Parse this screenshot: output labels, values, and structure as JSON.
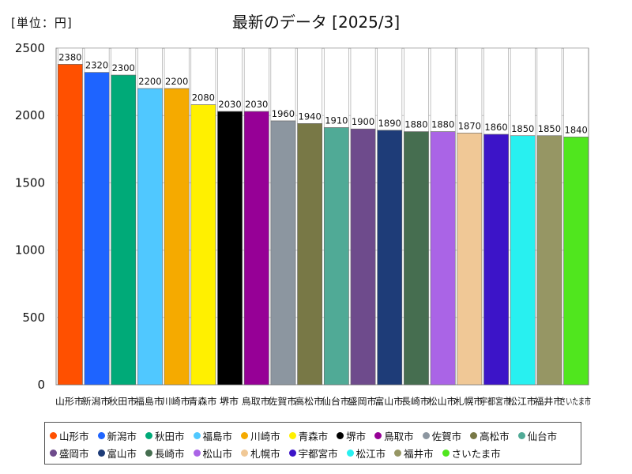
{
  "header": {
    "unit": "[単位：円]",
    "title": "最新のデータ [2025/3]"
  },
  "chart_data": {
    "type": "bar",
    "title": "最新のデータ [2025/3]",
    "ylabel": "[単位：円]",
    "xlabel": "",
    "ylim": [
      0,
      2500
    ],
    "yticks": [
      0,
      500,
      1000,
      1500,
      2000,
      2500
    ],
    "grid": true,
    "legend_position": "bottom",
    "categories": [
      "山形市",
      "新潟市",
      "秋田市",
      "福島市",
      "川崎市",
      "青森市",
      "堺市",
      "鳥取市",
      "佐賀市",
      "高松市",
      "仙台市",
      "盛岡市",
      "富山市",
      "長崎市",
      "松山市",
      "札幌市",
      "宇都宮市",
      "松江市",
      "福井市",
      "さいたま市"
    ],
    "values": [
      2380,
      2320,
      2300,
      2200,
      2200,
      2080,
      2030,
      2030,
      1960,
      1940,
      1910,
      1900,
      1890,
      1880,
      1880,
      1870,
      1860,
      1850,
      1850,
      1840
    ],
    "colors": [
      "#ff5000",
      "#1e64ff",
      "#00aa78",
      "#50c8ff",
      "#f5aa00",
      "#fff000",
      "#000000",
      "#960096",
      "#8c96a0",
      "#787846",
      "#50aa96",
      "#6e4b8c",
      "#1e3c78",
      "#466e50",
      "#aa64e6",
      "#f0c896",
      "#3c14c8",
      "#28f0f0",
      "#969664",
      "#50e61e"
    ]
  }
}
